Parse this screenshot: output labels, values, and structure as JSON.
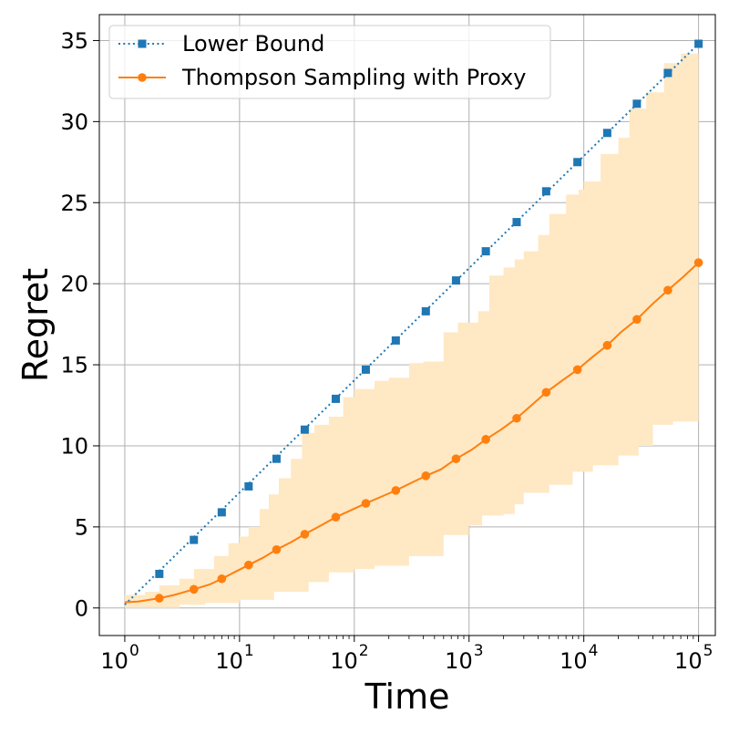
{
  "chart_data": {
    "type": "line",
    "xlabel": "Time",
    "ylabel": "Regret",
    "x_scale": "log",
    "xlim": [
      0.6,
      140000
    ],
    "ylim": [
      -1.7,
      36.6
    ],
    "grid": true,
    "legend_position": "top-left",
    "x_ticks": [
      {
        "value": 1,
        "base": "10",
        "exp": "0"
      },
      {
        "value": 10,
        "base": "10",
        "exp": "1"
      },
      {
        "value": 100,
        "base": "10",
        "exp": "2"
      },
      {
        "value": 1000,
        "base": "10",
        "exp": "3"
      },
      {
        "value": 10000,
        "base": "10",
        "exp": "4"
      },
      {
        "value": 100000,
        "base": "10",
        "exp": "5"
      }
    ],
    "y_ticks": [
      {
        "value": 0,
        "label": "0"
      },
      {
        "value": 5,
        "label": "5"
      },
      {
        "value": 10,
        "label": "10"
      },
      {
        "value": 15,
        "label": "15"
      },
      {
        "value": 20,
        "label": "20"
      },
      {
        "value": 25,
        "label": "25"
      },
      {
        "value": 30,
        "label": "30"
      },
      {
        "value": 35,
        "label": "35"
      }
    ],
    "series": [
      {
        "name": "Lower Bound",
        "color": "#1f77b4",
        "line_style": "dotted",
        "marker": "square",
        "line_x": [
          1,
          100000
        ],
        "line_y": [
          0.2,
          34.8
        ],
        "points": [
          [
            2,
            2.1
          ],
          [
            4,
            4.2
          ],
          [
            7,
            5.9
          ],
          [
            12,
            7.5
          ],
          [
            21,
            9.2
          ],
          [
            37,
            11.0
          ],
          [
            69,
            12.9
          ],
          [
            126,
            14.7
          ],
          [
            230,
            16.5
          ],
          [
            420,
            18.3
          ],
          [
            770,
            20.2
          ],
          [
            1400,
            22.0
          ],
          [
            2600,
            23.8
          ],
          [
            4700,
            25.7
          ],
          [
            8800,
            27.5
          ],
          [
            16000,
            29.3
          ],
          [
            29000,
            31.1
          ],
          [
            54000,
            33.0
          ],
          [
            100000,
            34.8
          ]
        ]
      },
      {
        "name": "Thompson Sampling with Proxy",
        "color": "#ff7f0e",
        "line_style": "solid",
        "marker": "circle",
        "band_color": "#ffe8c4",
        "line": [
          [
            1,
            0.35
          ],
          [
            1.3,
            0.4
          ],
          [
            2,
            0.6
          ],
          [
            2.7,
            0.8
          ],
          [
            4,
            1.15
          ],
          [
            5.5,
            1.45
          ],
          [
            7,
            1.8
          ],
          [
            9,
            2.2
          ],
          [
            12,
            2.65
          ],
          [
            16,
            3.1
          ],
          [
            21,
            3.6
          ],
          [
            28,
            4.05
          ],
          [
            37,
            4.55
          ],
          [
            50,
            5.05
          ],
          [
            69,
            5.6
          ],
          [
            95,
            6.05
          ],
          [
            126,
            6.45
          ],
          [
            170,
            6.85
          ],
          [
            230,
            7.25
          ],
          [
            310,
            7.7
          ],
          [
            420,
            8.15
          ],
          [
            570,
            8.55
          ],
          [
            770,
            9.2
          ],
          [
            1050,
            9.75
          ],
          [
            1400,
            10.4
          ],
          [
            1900,
            11.0
          ],
          [
            2600,
            11.7
          ],
          [
            3500,
            12.5
          ],
          [
            4700,
            13.3
          ],
          [
            6400,
            14.0
          ],
          [
            8800,
            14.7
          ],
          [
            12000,
            15.5
          ],
          [
            16000,
            16.2
          ],
          [
            21000,
            17.0
          ],
          [
            29000,
            17.8
          ],
          [
            39000,
            18.7
          ],
          [
            54000,
            19.6
          ],
          [
            73000,
            20.4
          ],
          [
            100000,
            21.3
          ]
        ],
        "points": [
          [
            2,
            0.6
          ],
          [
            4,
            1.15
          ],
          [
            7,
            1.8
          ],
          [
            12,
            2.65
          ],
          [
            21,
            3.6
          ],
          [
            37,
            4.55
          ],
          [
            69,
            5.6
          ],
          [
            126,
            6.45
          ],
          [
            230,
            7.25
          ],
          [
            420,
            8.15
          ],
          [
            770,
            9.2
          ],
          [
            1400,
            10.4
          ],
          [
            2600,
            11.7
          ],
          [
            4700,
            13.3
          ],
          [
            8800,
            14.7
          ],
          [
            16000,
            16.2
          ],
          [
            29000,
            17.8
          ],
          [
            54000,
            19.6
          ],
          [
            100000,
            21.3
          ]
        ],
        "band_upper": [
          [
            1,
            0.8
          ],
          [
            1.5,
            1.0
          ],
          [
            2,
            1.4
          ],
          [
            3,
            1.8
          ],
          [
            4,
            2.4
          ],
          [
            6,
            3.2
          ],
          [
            8,
            4.0
          ],
          [
            10,
            4.4
          ],
          [
            12,
            5.0
          ],
          [
            15,
            6.1
          ],
          [
            18,
            7.0
          ],
          [
            22,
            8.0
          ],
          [
            28,
            9.2
          ],
          [
            35,
            10.8
          ],
          [
            45,
            11.3
          ],
          [
            60,
            11.8
          ],
          [
            80,
            13.0
          ],
          [
            100,
            13.5
          ],
          [
            150,
            14.0
          ],
          [
            200,
            14.2
          ],
          [
            300,
            15.1
          ],
          [
            400,
            15.2
          ],
          [
            600,
            17.0
          ],
          [
            800,
            17.6
          ],
          [
            1000,
            17.6
          ],
          [
            1200,
            18.3
          ],
          [
            1500,
            20.5
          ],
          [
            2000,
            21.0
          ],
          [
            2500,
            21.5
          ],
          [
            3000,
            22.0
          ],
          [
            4000,
            23.0
          ],
          [
            5000,
            24.3
          ],
          [
            7000,
            25.5
          ],
          [
            9000,
            25.8
          ],
          [
            10000,
            26.3
          ],
          [
            14000,
            28.0
          ],
          [
            20000,
            29.0
          ],
          [
            25000,
            30.8
          ],
          [
            35000,
            31.8
          ],
          [
            50000,
            33.6
          ],
          [
            70000,
            34.2
          ],
          [
            100000,
            34.8
          ]
        ],
        "band_lower": [
          [
            1,
            0.0
          ],
          [
            2,
            0.0
          ],
          [
            3,
            0.2
          ],
          [
            5,
            0.3
          ],
          [
            10,
            0.5
          ],
          [
            20,
            1.0
          ],
          [
            40,
            1.6
          ],
          [
            60,
            2.2
          ],
          [
            100,
            2.4
          ],
          [
            150,
            2.6
          ],
          [
            300,
            3.2
          ],
          [
            600,
            4.5
          ],
          [
            1000,
            5.1
          ],
          [
            1300,
            5.7
          ],
          [
            2000,
            5.8
          ],
          [
            2500,
            6.4
          ],
          [
            3000,
            7.1
          ],
          [
            5000,
            7.6
          ],
          [
            8000,
            8.4
          ],
          [
            12000,
            8.8
          ],
          [
            20000,
            9.4
          ],
          [
            30000,
            10.0
          ],
          [
            40000,
            11.3
          ],
          [
            60000,
            11.5
          ],
          [
            100000,
            12.5
          ]
        ]
      }
    ]
  }
}
